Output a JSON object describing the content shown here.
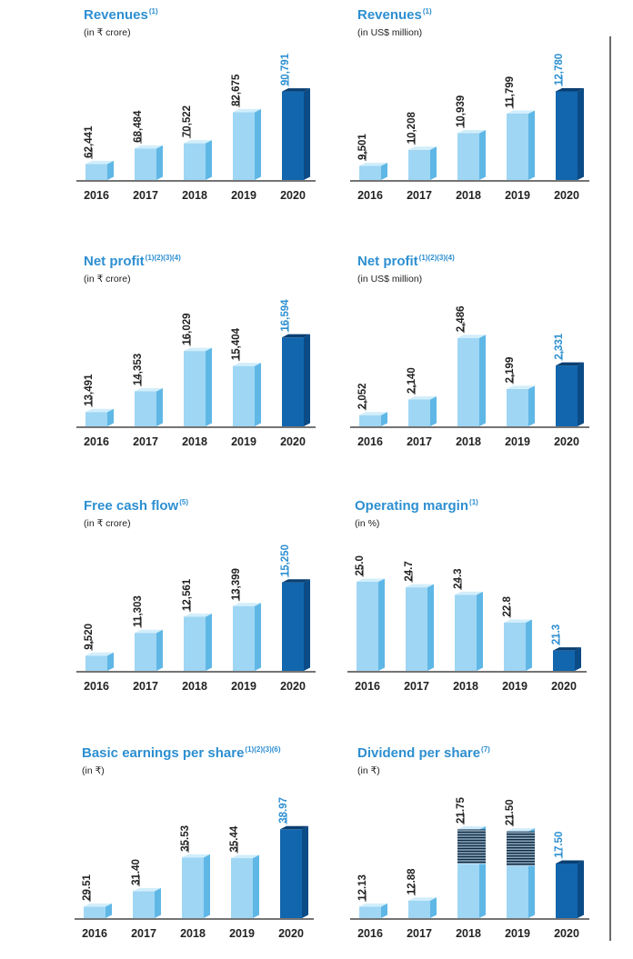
{
  "colors": {
    "title": "#2d8fd1",
    "light_front": "#9fd6f4",
    "light_top": "#d2eefb",
    "light_side": "#5fb7e6",
    "dark_front": "#1266ad",
    "dark_top": "#0a3f72",
    "dark_side": "#0b4b86",
    "label_normal": "#222222",
    "label_highlight": "#2d8fd1"
  },
  "chart_data": [
    {
      "type": "bar",
      "title": "Revenues",
      "notes": "(1)",
      "unit": "(in ₹ crore)",
      "categories": [
        "2016",
        "2017",
        "2018",
        "2019",
        "2020"
      ],
      "values": [
        62441,
        68484,
        70522,
        82675,
        90791
      ],
      "value_labels": [
        "62,441",
        "68,484",
        "70,522",
        "82,675",
        "90,791"
      ],
      "ylim": [
        59000,
        91000
      ],
      "highlight_last": true,
      "striped": []
    },
    {
      "type": "bar",
      "title": "Revenues",
      "notes": "(1)",
      "unit": "(in US$ million)",
      "categories": [
        "2016",
        "2017",
        "2018",
        "2019",
        "2020"
      ],
      "values": [
        9501,
        10208,
        10939,
        11799,
        12780
      ],
      "value_labels": [
        "9,501",
        "10,208",
        "10,939",
        "11,799",
        "12,780"
      ],
      "ylim": [
        9200,
        12800
      ],
      "highlight_last": true,
      "striped": []
    },
    {
      "type": "bar",
      "title": "Net profit",
      "notes": "(1)(2)(3)(4)",
      "unit": "(in ₹ crore)",
      "categories": [
        "2016",
        "2017",
        "2018",
        "2019",
        "2020"
      ],
      "values": [
        13491,
        14353,
        16029,
        15404,
        16594
      ],
      "value_labels": [
        "13,491",
        "14,353",
        "16,029",
        "15,404",
        "16,594"
      ],
      "ylim": [
        13200,
        16600
      ],
      "highlight_last": true,
      "striped": []
    },
    {
      "type": "bar",
      "title": "Net profit",
      "notes": "(1)(2)(3)(4)",
      "unit": "(in US$ million)",
      "categories": [
        "2016",
        "2017",
        "2018",
        "2019",
        "2020"
      ],
      "values": [
        2052,
        2140,
        2486,
        2199,
        2331
      ],
      "value_labels": [
        "2,052",
        "2,140",
        "2,486",
        "2,199",
        "2,331"
      ],
      "ylim": [
        2030,
        2490
      ],
      "highlight_last": true,
      "striped": []
    },
    {
      "type": "bar",
      "title": "Free cash flow",
      "notes": "(5)",
      "unit": "(in ₹ crore)",
      "categories": [
        "2016",
        "2017",
        "2018",
        "2019",
        "2020"
      ],
      "values": [
        9520,
        11303,
        12561,
        13399,
        15250
      ],
      "value_labels": [
        "9,520",
        "11,303",
        "12,561",
        "13,399",
        "15,250"
      ],
      "ylim": [
        8900,
        15300
      ],
      "highlight_last": true,
      "striped": []
    },
    {
      "type": "bar",
      "title": "Operating margin",
      "notes": "(1)",
      "unit": "(in %)",
      "categories": [
        "2016",
        "2017",
        "2018",
        "2019",
        "2020"
      ],
      "values": [
        25.0,
        24.7,
        24.3,
        22.8,
        21.3
      ],
      "value_labels": [
        "25.0",
        "24.7",
        "24.3",
        "22.8",
        "21.3"
      ],
      "ylim": [
        20.6,
        25.0
      ],
      "highlight_last": true,
      "striped": []
    },
    {
      "type": "bar",
      "title": "Basic earnings per share",
      "notes": "(1)(2)(3)(6)",
      "unit": "(in ₹)",
      "categories": [
        "2016",
        "2017",
        "2018",
        "2019",
        "2020"
      ],
      "values": [
        29.51,
        31.4,
        35.53,
        35.44,
        38.97
      ],
      "value_labels": [
        "29.51",
        "31.40",
        "35.53",
        "35.44",
        "38.97"
      ],
      "ylim": [
        29.0,
        39.0
      ],
      "highlight_last": true,
      "striped": []
    },
    {
      "type": "bar",
      "title": "Dividend per share",
      "notes": "(7)",
      "unit": "(in ₹)",
      "categories": [
        "2016",
        "2017",
        "2018",
        "2019",
        "2020"
      ],
      "values": [
        12.13,
        12.88,
        21.75,
        21.5,
        17.5
      ],
      "value_labels": [
        "12.13",
        "12.88",
        "21.75",
        "21.50",
        "17.50"
      ],
      "ylim": [
        11.6,
        21.8
      ],
      "highlight_last": true,
      "striped": [
        2,
        3
      ]
    }
  ]
}
